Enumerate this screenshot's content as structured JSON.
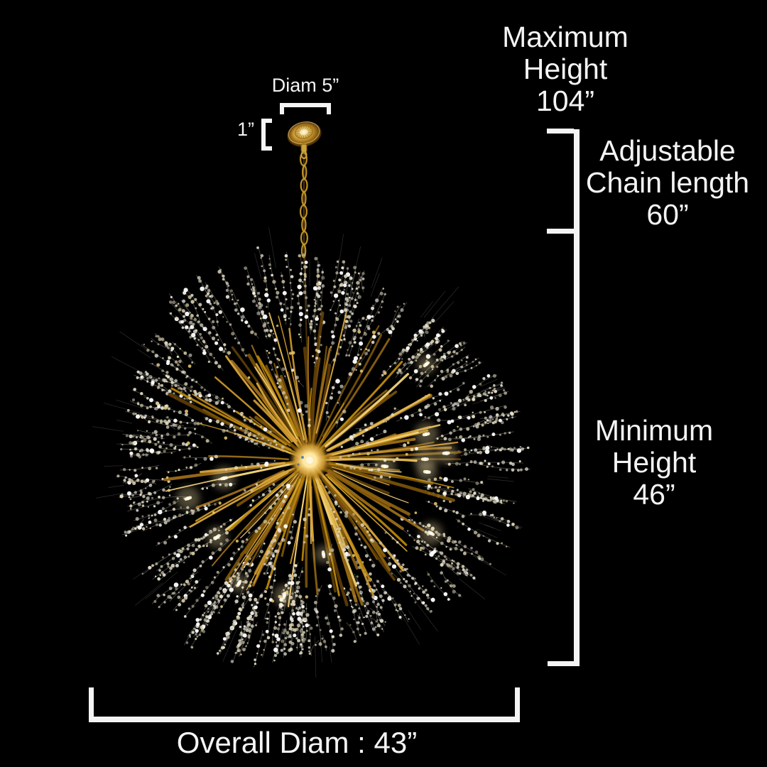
{
  "scene": {
    "background": "#000000",
    "annotation_color": "#f4f4f4"
  },
  "labels": {
    "max_height": {
      "lines": [
        "Maximum",
        "Height",
        "104”"
      ]
    },
    "chain_length": {
      "lines": [
        "Adjustable",
        "Chain length",
        "60”"
      ]
    },
    "min_height": {
      "lines": [
        "Minimum",
        "Height",
        "46”"
      ]
    },
    "canopy_diameter": "Diam 5”",
    "canopy_height": "1”",
    "overall_diameter": "Overall Diam : 43”"
  },
  "chandelier": {
    "style": "gold dandelion firework crystal chandelier",
    "frame_color": "#c9952c",
    "frame_dark": "#6b4708",
    "frame_light": "#ecca70",
    "crystal_color": "#ddddd2",
    "glow_color": "#ffe9ae"
  }
}
